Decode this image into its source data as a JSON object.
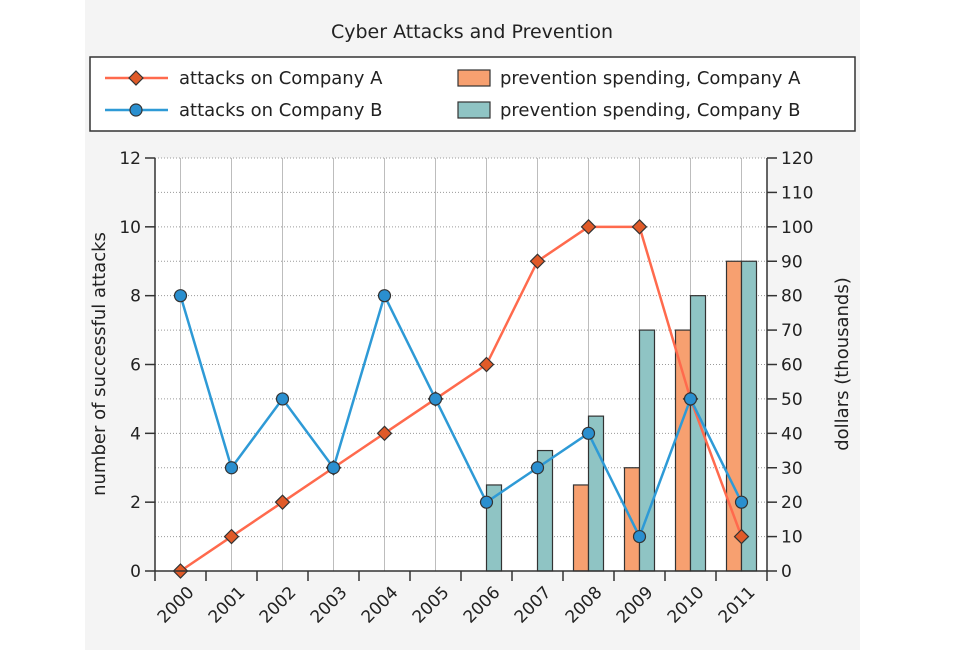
{
  "chart_data": {
    "type": "bar+line",
    "title": "Cyber Attacks and Prevention",
    "categories": [
      "2000",
      "2001",
      "2002",
      "2003",
      "2004",
      "2005",
      "2006",
      "2007",
      "2008",
      "2009",
      "2010",
      "2011"
    ],
    "lines": [
      {
        "name": "attacks on Company A",
        "color": "#ff6a4d",
        "marker": "diamond",
        "marker_color": "#e05a28",
        "values": [
          0,
          1,
          2,
          3,
          4,
          5,
          6,
          9,
          10,
          10,
          5,
          1
        ]
      },
      {
        "name": "attacks on Company B",
        "color": "#2e9ad6",
        "marker": "circle",
        "marker_color": "#2a8fcf",
        "values": [
          8,
          3,
          5,
          3,
          8,
          5,
          2,
          3,
          4,
          1,
          5,
          2
        ]
      }
    ],
    "bars": [
      {
        "name": "prevention spending, Company A",
        "color": "#f7a070",
        "values": [
          null,
          null,
          null,
          null,
          null,
          null,
          null,
          null,
          25,
          30,
          70,
          90
        ]
      },
      {
        "name": "prevention spending, Company B",
        "color": "#8fc4c4",
        "values": [
          null,
          null,
          null,
          null,
          null,
          null,
          25,
          35,
          45,
          70,
          80,
          90
        ]
      }
    ],
    "ylabel": "number of successful attacks",
    "ylim": [
      0,
      12
    ],
    "yticks": [
      "0",
      "2",
      "4",
      "6",
      "8",
      "10",
      "12"
    ],
    "y2label": "dollars (thousands)",
    "y2lim": [
      0,
      120
    ],
    "y2ticks": [
      "0",
      "10",
      "20",
      "30",
      "40",
      "50",
      "60",
      "70",
      "80",
      "90",
      "100",
      "110",
      "120"
    ],
    "grid": true,
    "legend_position": "top"
  }
}
